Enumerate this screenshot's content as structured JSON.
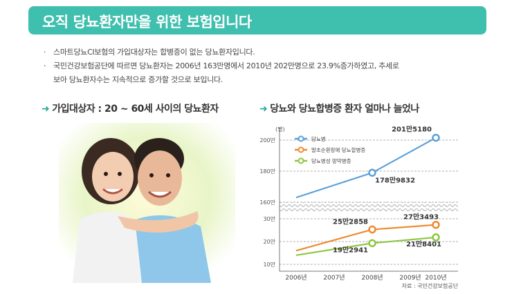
{
  "header": {
    "title": "오직 당뇨환자만을 위한 보험입니다"
  },
  "bullets": [
    "스마트당뇨CI보험의 가입대상자는 합병증이 없는 당뇨환자입니다.",
    "국민건강보험공단에 따르면 당뇨환자는 2006년 163만명에서 2010년 202만명으로 23.9%증가하였고, 추세로",
    "보아 당뇨환자수는 지속적으로 증가할 것으로 보입니다."
  ],
  "left_section": {
    "title": "가입대상자 : 20 ~ 60세 사이의 당뇨환자"
  },
  "right_section": {
    "title": "당뇨와 당뇨합병증 환자 얼마나 늘었나"
  },
  "colors": {
    "header": "#3fbfae",
    "diabetes": "#5aa0d8",
    "complication1": "#ee8a2e",
    "complication2": "#8cc63f"
  },
  "chart_data": {
    "type": "line",
    "categories": [
      "2006년",
      "2007년",
      "2008년",
      "2009년",
      "2010년"
    ],
    "unit": "(명)",
    "series": [
      {
        "name": "당뇨병",
        "color": "#5aa0d8",
        "values": [
          1630000,
          null,
          1789832,
          null,
          2015180
        ],
        "marked": [
          false,
          false,
          true,
          false,
          true
        ]
      },
      {
        "name": "말초순환장애 당뇨합병증",
        "color": "#ee8a2e",
        "values": [
          160000,
          null,
          252858,
          null,
          273493
        ],
        "marked": [
          false,
          false,
          true,
          false,
          true
        ]
      },
      {
        "name": "당뇨병성 망막병증",
        "color": "#8cc63f",
        "values": [
          140000,
          null,
          192941,
          null,
          218401
        ],
        "marked": [
          false,
          false,
          true,
          false,
          true
        ]
      }
    ],
    "data_labels": [
      {
        "series": 0,
        "index": 4,
        "text": "201만5180"
      },
      {
        "series": 0,
        "index": 2,
        "text": "178만9832"
      },
      {
        "series": 1,
        "index": 2,
        "text": "25만2858"
      },
      {
        "series": 1,
        "index": 4,
        "text": "27만3493"
      },
      {
        "series": 2,
        "index": 2,
        "text": "19만2941"
      },
      {
        "series": 2,
        "index": 4,
        "text": "21만8401"
      }
    ],
    "upper_axis": {
      "ticks": [
        1600000,
        1800000,
        2000000
      ],
      "labels": [
        "160만",
        "180만",
        "200만"
      ],
      "ylim": [
        1600000,
        2000000
      ]
    },
    "lower_axis": {
      "ticks": [
        100000,
        200000,
        300000
      ],
      "labels": [
        "10만",
        "20만",
        "30만"
      ],
      "ylim": [
        100000,
        300000
      ]
    },
    "broken_axis": true,
    "source": "자료 : 국민건강보험공단"
  }
}
